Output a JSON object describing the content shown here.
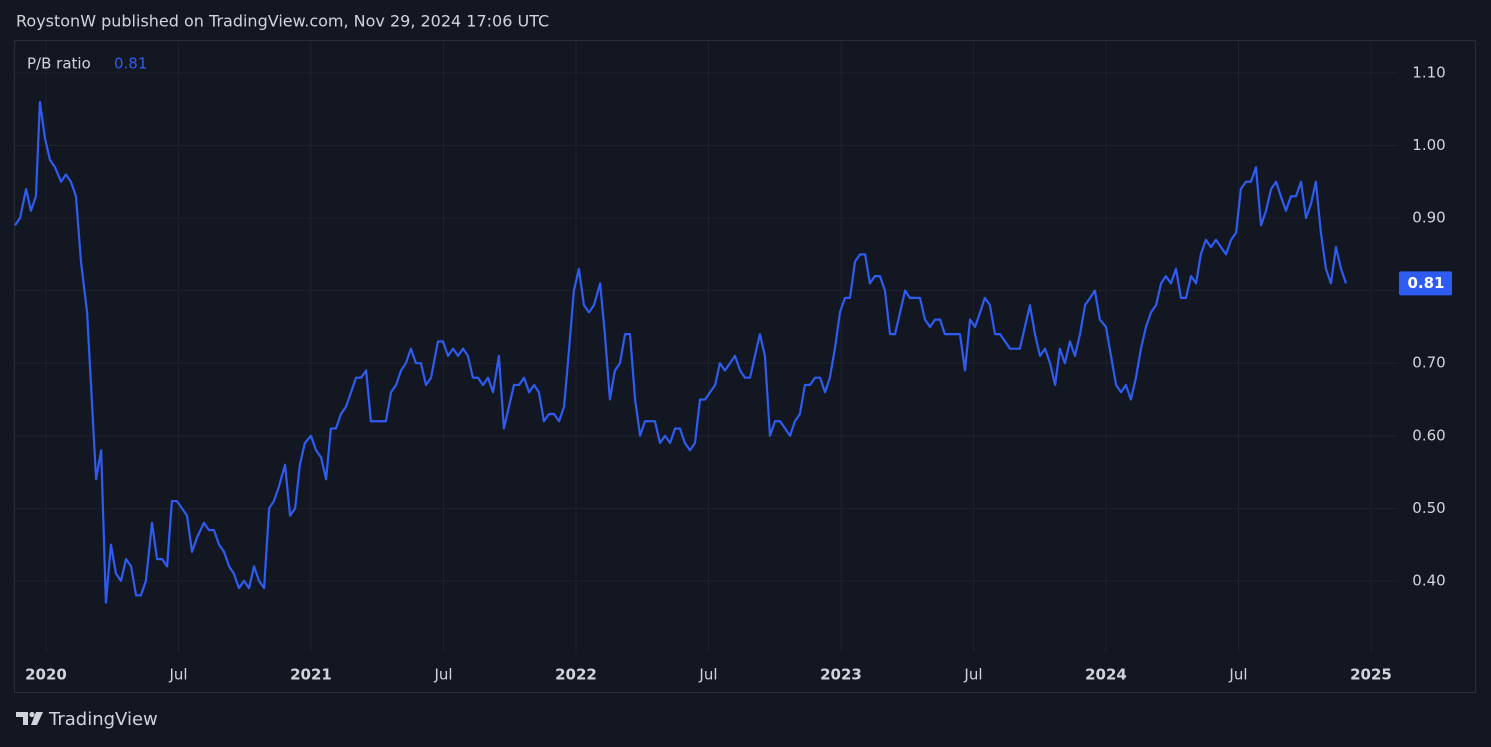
{
  "chart_data": {
    "type": "line",
    "title": "RoystonW published on TradingView.com, Nov 29, 2024 17:06 UTC",
    "source": "TradingView",
    "grid": true,
    "xlim": [
      2019.883,
      2025.102
    ],
    "ylim": [
      0.302,
      1.144
    ],
    "xticks": [
      {
        "value": 2020,
        "label": "2020"
      },
      {
        "value": 2020.5,
        "label": "Jul"
      },
      {
        "value": 2021,
        "label": "2021"
      },
      {
        "value": 2021.5,
        "label": "Jul"
      },
      {
        "value": 2022,
        "label": "2022"
      },
      {
        "value": 2022.5,
        "label": "Jul"
      },
      {
        "value": 2023,
        "label": "2023"
      },
      {
        "value": 2023.5,
        "label": "Jul"
      },
      {
        "value": 2024,
        "label": "2024"
      },
      {
        "value": 2024.5,
        "label": "Jul"
      },
      {
        "value": 2025,
        "label": "2025"
      }
    ],
    "yticks": [
      {
        "value": 0.4,
        "label": "0.40"
      },
      {
        "value": 0.5,
        "label": "0.50"
      },
      {
        "value": 0.6,
        "label": "0.60"
      },
      {
        "value": 0.7,
        "label": "0.70"
      },
      {
        "value": 0.8,
        "label": "0.80"
      },
      {
        "value": 0.9,
        "label": "0.90"
      },
      {
        "value": 1.0,
        "label": "1.00"
      },
      {
        "value": 1.1,
        "label": "1.10"
      }
    ],
    "x": [
      2019.883,
      2019.902,
      2019.925,
      2019.943,
      2019.962,
      2019.977,
      2019.996,
      2020.015,
      2020.034,
      2020.057,
      2020.075,
      2020.094,
      2020.113,
      2020.132,
      2020.155,
      2020.189,
      2020.208,
      2020.226,
      2020.245,
      2020.264,
      2020.283,
      2020.302,
      2020.321,
      2020.34,
      2020.358,
      2020.377,
      2020.4,
      2020.419,
      2020.438,
      2020.457,
      2020.475,
      2020.494,
      2020.513,
      2020.532,
      2020.551,
      2020.57,
      2020.596,
      2020.615,
      2020.634,
      2020.653,
      2020.672,
      2020.691,
      2020.709,
      2020.728,
      2020.747,
      2020.766,
      2020.785,
      2020.804,
      2020.823,
      2020.842,
      2020.86,
      2020.879,
      2020.902,
      2020.921,
      2020.94,
      2020.958,
      2020.977,
      2021,
      2021.019,
      2021.038,
      2021.057,
      2021.075,
      2021.094,
      2021.113,
      2021.132,
      2021.151,
      2021.17,
      2021.189,
      2021.208,
      2021.226,
      2021.245,
      2021.264,
      2021.283,
      2021.302,
      2021.321,
      2021.34,
      2021.358,
      2021.377,
      2021.396,
      2021.415,
      2021.434,
      2021.453,
      2021.479,
      2021.498,
      2021.517,
      2021.536,
      2021.555,
      2021.574,
      2021.592,
      2021.611,
      2021.63,
      2021.649,
      2021.668,
      2021.687,
      2021.709,
      2021.728,
      2021.747,
      2021.766,
      2021.785,
      2021.804,
      2021.823,
      2021.842,
      2021.86,
      2021.879,
      2021.898,
      2021.917,
      2021.936,
      2021.955,
      2021.974,
      2021.992,
      2022.011,
      2022.03,
      2022.049,
      2022.068,
      2022.091,
      2022.109,
      2022.128,
      2022.147,
      2022.166,
      2022.185,
      2022.204,
      2022.223,
      2022.242,
      2022.26,
      2022.279,
      2022.298,
      2022.317,
      2022.336,
      2022.355,
      2022.374,
      2022.392,
      2022.411,
      2022.43,
      2022.449,
      2022.468,
      2022.487,
      2022.506,
      2022.525,
      2022.543,
      2022.562,
      2022.581,
      2022.6,
      2022.619,
      2022.638,
      2022.657,
      2022.675,
      2022.694,
      2022.713,
      2022.732,
      2022.751,
      2022.77,
      2022.789,
      2022.808,
      2022.826,
      2022.845,
      2022.864,
      2022.883,
      2022.902,
      2022.921,
      2022.94,
      2022.958,
      2022.977,
      2022.996,
      2023.015,
      2023.034,
      2023.053,
      2023.072,
      2023.091,
      2023.109,
      2023.128,
      2023.147,
      2023.166,
      2023.185,
      2023.204,
      2023.223,
      2023.242,
      2023.26,
      2023.279,
      2023.298,
      2023.317,
      2023.336,
      2023.355,
      2023.374,
      2023.392,
      2023.411,
      2023.43,
      2023.449,
      2023.468,
      2023.487,
      2023.506,
      2023.525,
      2023.543,
      2023.562,
      2023.581,
      2023.6,
      2023.619,
      2023.638,
      2023.657,
      2023.675,
      2023.694,
      2023.713,
      2023.732,
      2023.751,
      2023.77,
      2023.789,
      2023.808,
      2023.826,
      2023.845,
      2023.864,
      2023.883,
      2023.902,
      2023.921,
      2023.94,
      2023.958,
      2023.977,
      2024,
      2024.019,
      2024.038,
      2024.057,
      2024.075,
      2024.094,
      2024.113,
      2024.132,
      2024.151,
      2024.17,
      2024.189,
      2024.208,
      2024.226,
      2024.245,
      2024.264,
      2024.283,
      2024.302,
      2024.321,
      2024.34,
      2024.358,
      2024.377,
      2024.396,
      2024.415,
      2024.434,
      2024.453,
      2024.472,
      2024.491,
      2024.509,
      2024.528,
      2024.547,
      2024.566,
      2024.585,
      2024.604,
      2024.623,
      2024.642,
      2024.66,
      2024.679,
      2024.698,
      2024.717,
      2024.736,
      2024.755,
      2024.774,
      2024.792,
      2024.811,
      2024.83,
      2024.849,
      2024.868,
      2024.887,
      2024.906
    ],
    "series": [
      {
        "name": "P/B ratio",
        "color": "#2f5cf0",
        "values": [
          0.89,
          0.9,
          0.94,
          0.91,
          0.93,
          1.06,
          1.01,
          0.98,
          0.97,
          0.95,
          0.96,
          0.95,
          0.93,
          0.84,
          0.77,
          0.54,
          0.58,
          0.37,
          0.45,
          0.41,
          0.4,
          0.43,
          0.42,
          0.38,
          0.38,
          0.4,
          0.48,
          0.43,
          0.43,
          0.42,
          0.51,
          0.51,
          0.5,
          0.49,
          0.44,
          0.46,
          0.48,
          0.47,
          0.47,
          0.45,
          0.44,
          0.42,
          0.41,
          0.39,
          0.4,
          0.39,
          0.42,
          0.4,
          0.39,
          0.5,
          0.51,
          0.53,
          0.56,
          0.49,
          0.5,
          0.56,
          0.59,
          0.6,
          0.58,
          0.57,
          0.54,
          0.61,
          0.61,
          0.63,
          0.64,
          0.66,
          0.68,
          0.68,
          0.69,
          0.62,
          0.62,
          0.62,
          0.62,
          0.66,
          0.67,
          0.69,
          0.7,
          0.72,
          0.7,
          0.7,
          0.67,
          0.68,
          0.73,
          0.73,
          0.71,
          0.72,
          0.71,
          0.72,
          0.71,
          0.68,
          0.68,
          0.67,
          0.68,
          0.66,
          0.71,
          0.61,
          0.64,
          0.67,
          0.67,
          0.68,
          0.66,
          0.67,
          0.66,
          0.62,
          0.63,
          0.63,
          0.62,
          0.64,
          0.72,
          0.8,
          0.83,
          0.78,
          0.77,
          0.78,
          0.81,
          0.74,
          0.65,
          0.69,
          0.7,
          0.74,
          0.74,
          0.65,
          0.6,
          0.62,
          0.62,
          0.62,
          0.59,
          0.6,
          0.59,
          0.61,
          0.61,
          0.59,
          0.58,
          0.59,
          0.65,
          0.65,
          0.66,
          0.67,
          0.7,
          0.69,
          0.7,
          0.71,
          0.69,
          0.68,
          0.68,
          0.71,
          0.74,
          0.71,
          0.6,
          0.62,
          0.62,
          0.61,
          0.6,
          0.62,
          0.63,
          0.67,
          0.67,
          0.68,
          0.68,
          0.66,
          0.68,
          0.72,
          0.77,
          0.79,
          0.79,
          0.84,
          0.85,
          0.85,
          0.81,
          0.82,
          0.82,
          0.8,
          0.74,
          0.74,
          0.77,
          0.8,
          0.79,
          0.79,
          0.79,
          0.76,
          0.75,
          0.76,
          0.76,
          0.74,
          0.74,
          0.74,
          0.74,
          0.69,
          0.76,
          0.75,
          0.77,
          0.79,
          0.78,
          0.74,
          0.74,
          0.73,
          0.72,
          0.72,
          0.72,
          0.75,
          0.78,
          0.74,
          0.71,
          0.72,
          0.7,
          0.67,
          0.72,
          0.7,
          0.73,
          0.71,
          0.74,
          0.78,
          0.79,
          0.8,
          0.76,
          0.75,
          0.71,
          0.67,
          0.66,
          0.67,
          0.65,
          0.68,
          0.72,
          0.75,
          0.77,
          0.78,
          0.81,
          0.82,
          0.81,
          0.83,
          0.79,
          0.79,
          0.82,
          0.81,
          0.85,
          0.87,
          0.86,
          0.87,
          0.86,
          0.85,
          0.87,
          0.88,
          0.94,
          0.95,
          0.95,
          0.97,
          0.89,
          0.91,
          0.94,
          0.95,
          0.93,
          0.91,
          0.93,
          0.93,
          0.95,
          0.9,
          0.92,
          0.95,
          0.88,
          0.83,
          0.81,
          0.86,
          0.83,
          0.81
        ]
      }
    ]
  }
}
